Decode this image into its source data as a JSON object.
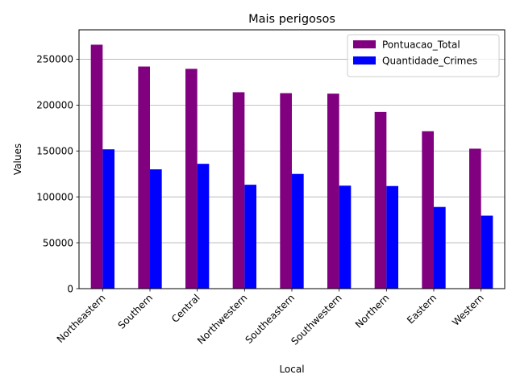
{
  "chart_data": {
    "type": "bar",
    "title": "Mais perigosos",
    "xlabel": "Local",
    "ylabel": "Values",
    "categories": [
      "Northeastern",
      "Southern",
      "Central",
      "Northwestern",
      "Southeastern",
      "Southwestern",
      "Northern",
      "Eastern",
      "Western"
    ],
    "series": [
      {
        "name": "Pontuacao_Total",
        "color": "#800080",
        "values": [
          265800,
          242000,
          239500,
          214000,
          213000,
          212500,
          192500,
          171500,
          152500
        ]
      },
      {
        "name": "Quantidade_Crimes",
        "color": "#0000ff",
        "values": [
          151800,
          130000,
          136000,
          113200,
          125000,
          112200,
          111800,
          89000,
          79500
        ]
      }
    ],
    "ylim": [
      0,
      282000
    ],
    "yticks": [
      0,
      50000,
      100000,
      150000,
      200000,
      250000
    ],
    "ytick_labels": [
      "0",
      "50000",
      "100000",
      "150000",
      "200000",
      "250000"
    ],
    "x_tick_rotation": 45,
    "grid": "horizontal",
    "legend_position": "top-right"
  }
}
